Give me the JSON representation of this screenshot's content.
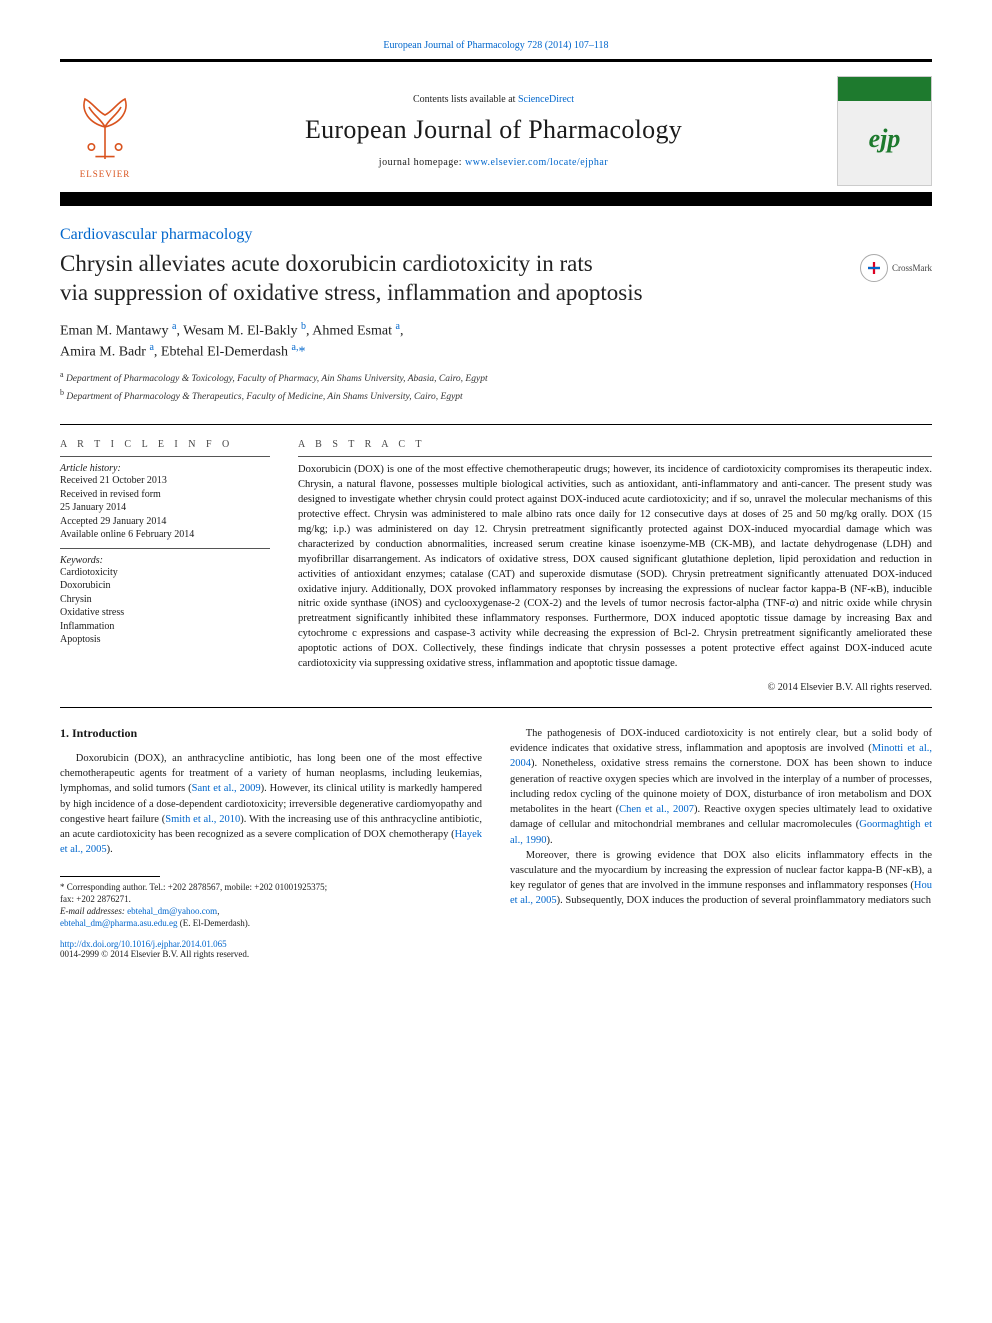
{
  "header": {
    "citation_line_prefix": "European Journal of Pharmacology 728 (2014) 107–118",
    "contents_prefix": "Contents lists available at ",
    "contents_link": "ScienceDirect",
    "journal_name": "European Journal of Pharmacology",
    "homepage_prefix": "journal homepage: ",
    "homepage_link": "www.elsevier.com/locate/ejphar",
    "elsevier_word": "ELSEVIER",
    "cover_badge": "ejp"
  },
  "section_label": "Cardiovascular pharmacology",
  "crossmark_label": "CrossMark",
  "title_line1": "Chrysin alleviates acute doxorubicin cardiotoxicity in rats",
  "title_line2": "via suppression of oxidative stress, inflammation and apoptosis",
  "authors_html": "Eman M. Mantawy <sup>a</sup>, Wesam M. El-Bakly <sup>b</sup>, Ahmed Esmat <sup>a</sup>,<br>Amira M. Badr <sup>a</sup>, Ebtehal El-Demerdash <sup>a,</sup><span class='star'>*</span>",
  "affiliations": {
    "a": "Department of Pharmacology & Toxicology, Faculty of Pharmacy, Ain Shams University, Abasia, Cairo, Egypt",
    "b": "Department of Pharmacology & Therapeutics, Faculty of Medicine, Ain Shams University, Cairo, Egypt"
  },
  "info": {
    "heading": "A R T I C L E  I N F O",
    "history_head": "Article history:",
    "history": [
      "Received 21 October 2013",
      "Received in revised form",
      "25 January 2014",
      "Accepted 29 January 2014",
      "Available online 6 February 2014"
    ],
    "keywords_head": "Keywords:",
    "keywords": [
      "Cardiotoxicity",
      "Doxorubicin",
      "Chrysin",
      "Oxidative stress",
      "Inflammation",
      "Apoptosis"
    ]
  },
  "abstract": {
    "heading": "A B S T R A C T",
    "text": "Doxorubicin (DOX) is one of the most effective chemotherapeutic drugs; however, its incidence of cardiotoxicity compromises its therapeutic index. Chrysin, a natural flavone, possesses multiple biological activities, such as antioxidant, anti-inflammatory and anti-cancer. The present study was designed to investigate whether chrysin could protect against DOX-induced acute cardiotoxicity; and if so, unravel the molecular mechanisms of this protective effect. Chrysin was administered to male albino rats once daily for 12 consecutive days at doses of 25 and 50 mg/kg orally. DOX (15 mg/kg; i.p.) was administered on day 12. Chrysin pretreatment significantly protected against DOX-induced myocardial damage which was characterized by conduction abnormalities, increased serum creatine kinase isoenzyme-MB (CK-MB), and lactate dehydrogenase (LDH) and myofibrillar disarrangement. As indicators of oxidative stress, DOX caused significant glutathione depletion, lipid peroxidation and reduction in activities of antioxidant enzymes; catalase (CAT) and superoxide dismutase (SOD). Chrysin pretreatment significantly attenuated DOX-induced oxidative injury. Additionally, DOX provoked inflammatory responses by increasing the expressions of nuclear factor kappa-B (NF-κB), inducible nitric oxide synthase (iNOS) and cyclooxygenase-2 (COX-2) and the levels of tumor necrosis factor-alpha (TNF-α) and nitric oxide while chrysin pretreatment significantly inhibited these inflammatory responses. Furthermore, DOX induced apoptotic tissue damage by increasing Bax and cytochrome c expressions and caspase-3 activity while decreasing the expression of Bcl-2. Chrysin pretreatment significantly ameliorated these apoptotic actions of DOX. Collectively, these findings indicate that chrysin possesses a potent protective effect against DOX-induced acute cardiotoxicity via suppressing oxidative stress, inflammation and apoptotic tissue damage.",
    "copyright": "© 2014 Elsevier B.V. All rights reserved."
  },
  "body": {
    "sec1_heading": "1.  Introduction",
    "col1_p1": "Doxorubicin (DOX), an anthracycline antibiotic, has long been one of the most effective chemotherapeutic agents for treatment of a variety of human neoplasms, including leukemias, lymphomas, and solid tumors (",
    "col1_p1_cite1": "Sant et al., 2009",
    "col1_p1_b": "). However, its clinical utility is markedly hampered by high incidence of a dose-dependent cardiotoxicity; irreversible degenerative cardiomyopathy and congestive heart failure (",
    "col1_p1_cite2": "Smith et al., 2010",
    "col1_p1_c": "). With the increasing use of this anthracycline antibiotic, an acute cardiotoxicity has been recognized as a severe complication of DOX chemotherapy (",
    "col1_p1_cite3": "Hayek et al., 2005",
    "col1_p1_d": ").",
    "col2_p1": "The pathogenesis of DOX-induced cardiotoxicity is not entirely clear, but a solid body of evidence indicates that oxidative stress, inflammation and apoptosis are involved (",
    "col2_p1_cite1": "Minotti et al., 2004",
    "col2_p1_b": "). Nonetheless, oxidative stress remains the cornerstone. DOX has been shown to induce generation of reactive oxygen species which are involved in the interplay of a number of processes, including redox cycling of the quinone moiety of DOX, disturbance of iron metabolism and DOX metabolites in the heart (",
    "col2_p1_cite2": "Chen et al., 2007",
    "col2_p1_c": "). Reactive oxygen species ultimately lead to oxidative damage of cellular and mitochondrial membranes and cellular macromolecules (",
    "col2_p1_cite3": "Goormaghtigh et al., 1990",
    "col2_p1_d": ").",
    "col2_p2": "Moreover, there is growing evidence that DOX also elicits inflammatory effects in the vasculature and the myocardium by increasing the expression of nuclear factor kappa-B (NF-κB), a key regulator of genes that are involved in the immune responses and inflammatory responses (",
    "col2_p2_cite1": "Hou et al., 2005",
    "col2_p2_b": "). Subsequently, DOX induces the production of several proinflammatory mediators such"
  },
  "footnote": {
    "corr_label": "* Corresponding author. Tel.: +202 2878567, mobile: +202 01001925375;",
    "fax": "fax: +202 2876271.",
    "email_label": "E-mail addresses: ",
    "email1": "ebtehal_dm@yahoo.com",
    "email_sep": ",",
    "email2": "ebtehal_dm@pharma.asu.edu.eg",
    "email_who": " (E. El-Demerdash)."
  },
  "doi": {
    "url": "http://dx.doi.org/10.1016/j.ejphar.2014.01.065",
    "issn_line": "0014-2999 © 2014 Elsevier B.V. All rights reserved."
  },
  "colors": {
    "link": "#0066cc",
    "elsevier_orange": "#d9531e",
    "cover_green": "#1e7a2e",
    "text": "#1a1a1a"
  }
}
